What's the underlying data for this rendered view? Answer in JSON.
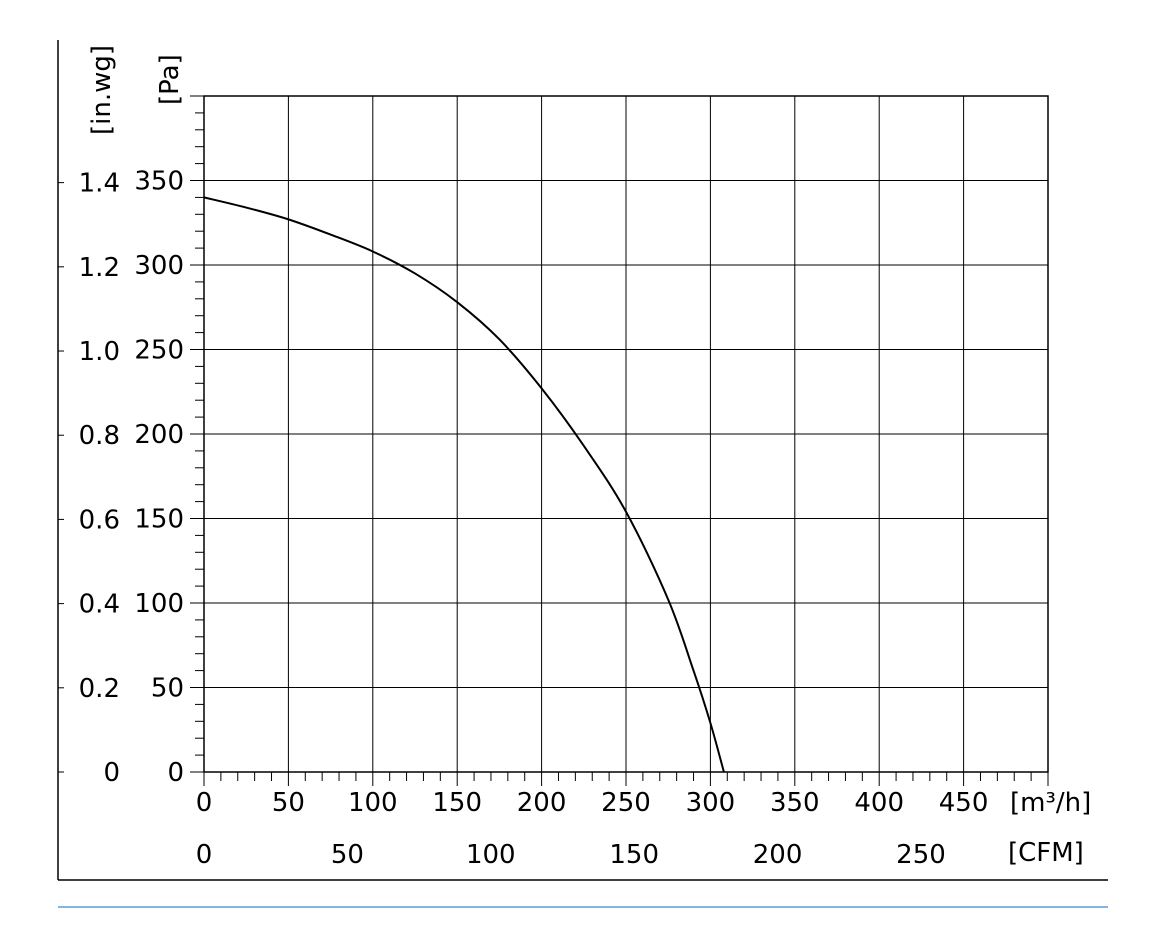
{
  "chart_data": {
    "type": "line",
    "title": "",
    "x_axis": {
      "unit": "[m³/h]",
      "range": [
        0,
        500
      ],
      "ticks": [
        "0",
        "50",
        "100",
        "150",
        "200",
        "250",
        "300",
        "350",
        "400",
        "450"
      ],
      "tick_values": [
        0,
        50,
        100,
        150,
        200,
        250,
        300,
        350,
        400,
        450
      ],
      "minor_step": 10
    },
    "x2_axis": {
      "unit": "[CFM]",
      "ticks": [
        "0",
        "50",
        "100",
        "150",
        "200",
        "250"
      ],
      "tick_values": [
        0,
        50,
        100,
        150,
        200,
        250
      ],
      "factor_m3h_per_cfm": 1.699
    },
    "y_axis": {
      "unit": "[Pa]",
      "range": [
        0,
        400
      ],
      "ticks": [
        "0",
        "50",
        "100",
        "150",
        "200",
        "250",
        "300",
        "350"
      ],
      "tick_values": [
        0,
        50,
        100,
        150,
        200,
        250,
        300,
        350
      ],
      "minor_step": 10
    },
    "y2_axis": {
      "unit": "[in.wg]",
      "ticks": [
        "0",
        "0.2",
        "0.4",
        "0.6",
        "0.8",
        "1.0",
        "1.2",
        "1.4"
      ],
      "tick_values": [
        0,
        0.2,
        0.4,
        0.6,
        0.8,
        1.0,
        1.2,
        1.4
      ],
      "factor_pa_per_inwg": 249.1
    },
    "grid": true,
    "series": [
      {
        "color": "#000000",
        "points": [
          [
            0,
            340
          ],
          [
            25,
            334
          ],
          [
            50,
            327
          ],
          [
            75,
            318
          ],
          [
            100,
            308
          ],
          [
            125,
            295
          ],
          [
            150,
            278
          ],
          [
            175,
            256
          ],
          [
            200,
            227
          ],
          [
            225,
            193
          ],
          [
            250,
            154
          ],
          [
            275,
            102
          ],
          [
            290,
            60
          ],
          [
            300,
            29
          ],
          [
            308,
            0
          ]
        ]
      }
    ]
  },
  "colors": {
    "bottom_rule": "#5b9bd5",
    "frame": "#000000"
  }
}
